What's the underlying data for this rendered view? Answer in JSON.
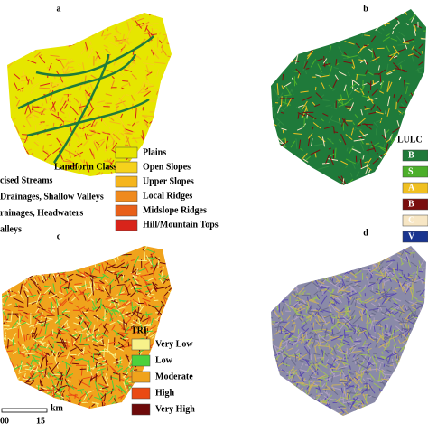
{
  "panels": [
    {
      "label": "a",
      "legend": {
        "title": "Landform Classes",
        "left_items": [
          "cised Streams",
          "Drainages, Shallow Valleys",
          "rainages, Headwaters",
          "alleys"
        ],
        "items": [
          {
            "label": "Plains",
            "color": "#e6e600"
          },
          {
            "label": "Open Slopes",
            "color": "#f5d21c"
          },
          {
            "label": "Upper Slopes",
            "color": "#f5b51c"
          },
          {
            "label": "Local Ridges",
            "color": "#ef8a1e"
          },
          {
            "label": "Midslope Ridges",
            "color": "#e8601a"
          },
          {
            "label": "Hill/Mountain Tops",
            "color": "#d8241a"
          }
        ]
      }
    },
    {
      "label": "b",
      "legend": {
        "title": "LULC",
        "items": [
          {
            "label": "B",
            "color": "#1f7a3a"
          },
          {
            "label": "S",
            "color": "#4caf2a"
          },
          {
            "label": "A",
            "color": "#f0c020"
          },
          {
            "label": "B",
            "color": "#7a0e0e"
          },
          {
            "label": "C",
            "color": "#f7e6c4"
          },
          {
            "label": "V",
            "color": "#1a3590"
          }
        ]
      }
    },
    {
      "label": "c",
      "legend": {
        "title": "TRI",
        "items": [
          {
            "label": "Very Low",
            "color": "#f7f28a"
          },
          {
            "label": "Low",
            "color": "#4bd13c"
          },
          {
            "label": "Moderate",
            "color": "#f0a31c"
          },
          {
            "label": "High",
            "color": "#ea4a14"
          },
          {
            "label": "Very High",
            "color": "#6e0a0a"
          }
        ]
      },
      "scale": {
        "unit": "km",
        "start": "00",
        "end": "15"
      }
    },
    {
      "label": "d"
    }
  ]
}
